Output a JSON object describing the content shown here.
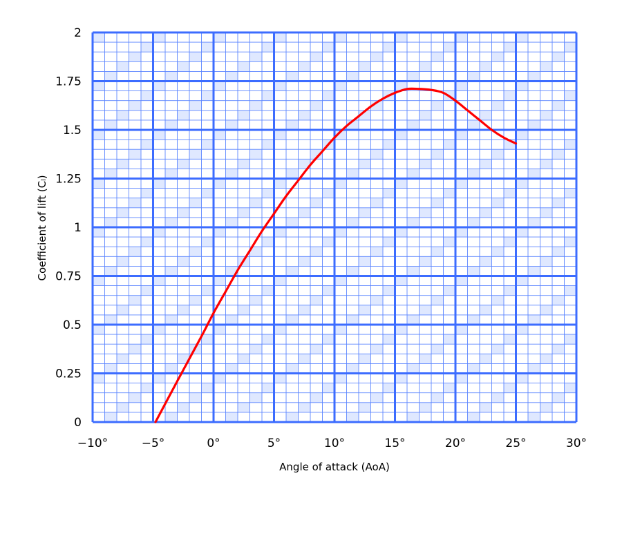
{
  "chart_data": {
    "type": "line",
    "title": "",
    "xlabel": "Angle of attack (AoA)",
    "ylabel": "Coefficient of lift (Cₗ)",
    "xlim": [
      -10,
      30
    ],
    "ylim": [
      0,
      2
    ],
    "x_ticks": [
      -10,
      -5,
      0,
      5,
      10,
      15,
      20,
      25,
      30
    ],
    "x_tick_labels": [
      "−10°",
      "−5°",
      "0°",
      "5°",
      "10°",
      "15°",
      "20°",
      "25°",
      "30°"
    ],
    "y_ticks": [
      0,
      0.25,
      0.5,
      0.75,
      1,
      1.25,
      1.5,
      1.75,
      2
    ],
    "y_tick_labels": [
      "0",
      "0.25",
      "0.5",
      "0.75",
      "1",
      "1.25",
      "1.5",
      "1.75",
      "2"
    ],
    "grid": true,
    "legend": "none",
    "series": [
      {
        "color": "#ff0000",
        "x": [
          -4.8,
          -3,
          -1,
          0,
          1,
          2,
          3,
          4,
          5,
          6,
          7,
          8,
          9,
          10,
          11,
          12,
          13,
          14,
          15,
          16,
          17,
          18,
          19,
          20,
          21,
          22,
          23,
          24,
          25
        ],
        "y": [
          0,
          0.21,
          0.44,
          0.56,
          0.67,
          0.78,
          0.88,
          0.98,
          1.07,
          1.16,
          1.24,
          1.32,
          1.39,
          1.46,
          1.52,
          1.57,
          1.62,
          1.66,
          1.69,
          1.71,
          1.71,
          1.705,
          1.69,
          1.65,
          1.6,
          1.55,
          1.5,
          1.46,
          1.43
        ]
      }
    ]
  },
  "colors": {
    "grid_major": "#3c6cff",
    "grid_minor": "#5b85ff",
    "shading": "#dfe8ff",
    "line": "#ff0000"
  }
}
